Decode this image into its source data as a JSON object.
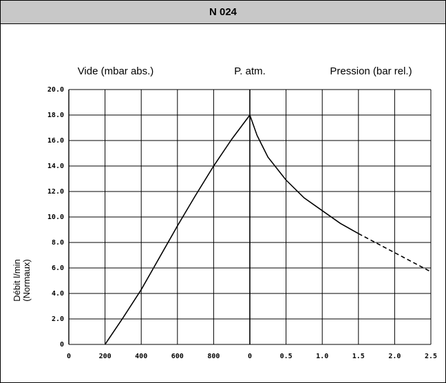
{
  "title": "N 024",
  "chart_data": {
    "type": "line",
    "header_labels": {
      "left": "Vide (mbar abs.)",
      "center": "P. atm.",
      "right": "Pression (bar rel.)"
    },
    "ylabel_line1": "Débit l/min",
    "ylabel_line2": "(Normaux)",
    "ylim": [
      0,
      20
    ],
    "y_ticks": [
      "20.0",
      "18.0",
      "16.0",
      "14.0",
      "12.0",
      "10.0",
      "8.0",
      "6.0",
      "4.0",
      "2.0",
      "0"
    ],
    "y_tick_values": [
      20,
      18,
      16,
      14,
      12,
      10,
      8,
      6,
      4,
      2,
      0
    ],
    "x_scale_note": "x axis split at P. atm.: left half vacuum in mbar abs. (0 to 1000), right half pressure in bar rel. (0 to 2.5)",
    "x_ticks": [
      "0",
      "200",
      "400",
      "600",
      "800",
      "0",
      "0.5",
      "1.0",
      "1.5",
      "2.0",
      "2.5"
    ],
    "grid": true,
    "series": [
      {
        "segment": "vacuum",
        "points": [
          [
            200,
            0
          ],
          [
            300,
            2.1
          ],
          [
            400,
            4.3
          ],
          [
            500,
            6.8
          ],
          [
            600,
            9.3
          ],
          [
            700,
            11.7
          ],
          [
            800,
            14.0
          ],
          [
            900,
            16.1
          ],
          [
            1000,
            18.0
          ]
        ]
      },
      {
        "segment": "pressure",
        "points": [
          [
            0,
            18.0
          ],
          [
            0.1,
            16.4
          ],
          [
            0.25,
            14.7
          ],
          [
            0.5,
            12.9
          ],
          [
            0.75,
            11.5
          ],
          [
            1.0,
            10.5
          ],
          [
            1.25,
            9.5
          ],
          [
            1.5,
            8.7
          ]
        ]
      },
      {
        "segment": "pressure",
        "style": "dashed",
        "points": [
          [
            1.5,
            8.7
          ],
          [
            2.0,
            7.2
          ],
          [
            2.5,
            5.7
          ]
        ]
      }
    ]
  }
}
